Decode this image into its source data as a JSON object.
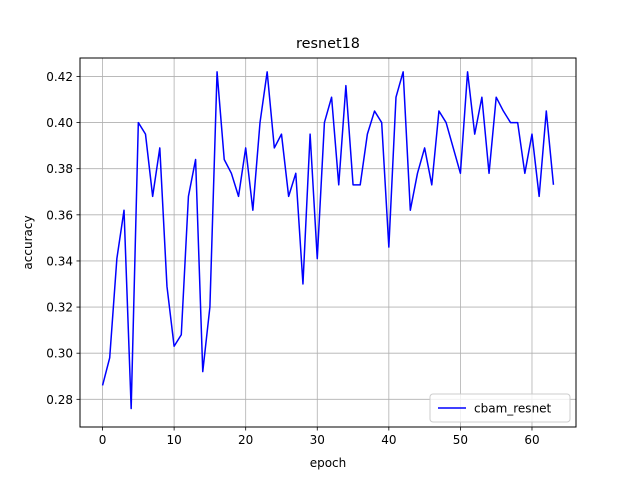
{
  "chart_data": {
    "type": "line",
    "title": "resnet18",
    "xlabel": "epoch",
    "ylabel": "accuracy",
    "xlim": [
      -3.15,
      66.15
    ],
    "ylim": [
      0.268,
      0.428
    ],
    "xticks": [
      0,
      10,
      20,
      30,
      40,
      50,
      60
    ],
    "yticks": [
      0.28,
      0.3,
      0.32,
      0.34,
      0.36,
      0.38,
      0.4,
      0.42
    ],
    "ytick_labels": [
      "0.28",
      "0.30",
      "0.32",
      "0.34",
      "0.36",
      "0.38",
      "0.40",
      "0.42"
    ],
    "grid": true,
    "legend_position": "lower-right",
    "series": [
      {
        "name": "cbam_resnet",
        "color": "#0000ff",
        "x": [
          0,
          1,
          2,
          3,
          4,
          5,
          6,
          7,
          8,
          9,
          10,
          11,
          12,
          13,
          14,
          15,
          16,
          17,
          18,
          19,
          20,
          21,
          22,
          23,
          24,
          25,
          26,
          27,
          28,
          29,
          30,
          31,
          32,
          33,
          34,
          35,
          36,
          37,
          38,
          39,
          40,
          41,
          42,
          43,
          44,
          45,
          46,
          47,
          48,
          49,
          50,
          51,
          52,
          53,
          54,
          55,
          56,
          57,
          58,
          59,
          60,
          61,
          62,
          63
        ],
        "values": [
          0.286,
          0.298,
          0.341,
          0.362,
          0.276,
          0.4,
          0.395,
          0.368,
          0.389,
          0.329,
          0.303,
          0.308,
          0.368,
          0.384,
          0.292,
          0.32,
          0.422,
          0.384,
          0.378,
          0.368,
          0.389,
          0.362,
          0.4,
          0.422,
          0.389,
          0.395,
          0.368,
          0.378,
          0.33,
          0.395,
          0.341,
          0.4,
          0.411,
          0.373,
          0.416,
          0.373,
          0.373,
          0.395,
          0.405,
          0.4,
          0.346,
          0.411,
          0.422,
          0.362,
          0.378,
          0.389,
          0.373,
          0.405,
          0.4,
          0.389,
          0.378,
          0.422,
          0.395,
          0.411,
          0.378,
          0.411,
          0.405,
          0.4,
          0.4,
          0.378,
          0.395,
          0.368,
          0.405,
          0.373
        ]
      }
    ]
  }
}
